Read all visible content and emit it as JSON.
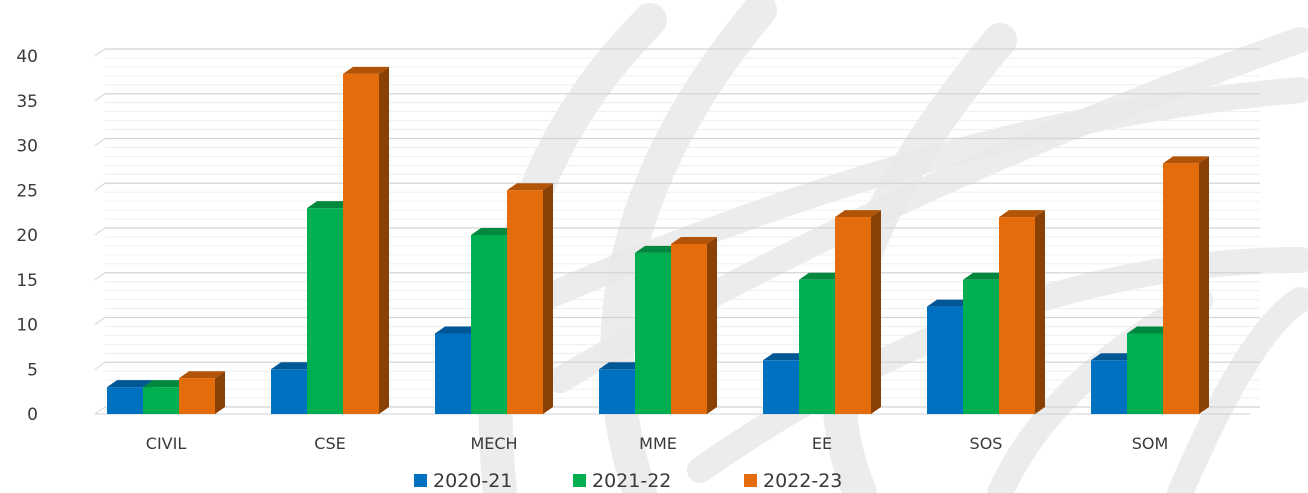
{
  "chart_data": {
    "type": "bar",
    "categories": [
      "CIVIL",
      "CSE",
      "MECH",
      "MME",
      "EE",
      "SOS",
      "SOM"
    ],
    "series": [
      {
        "name": "2020-21",
        "color": "#0070C0",
        "values": [
          3,
          5,
          9,
          5,
          6,
          12,
          6
        ]
      },
      {
        "name": "2021-22",
        "color": "#00B050",
        "values": [
          3,
          23,
          20,
          18,
          15,
          15,
          9
        ]
      },
      {
        "name": "2022-23",
        "color": "#E46C0A",
        "values": [
          4,
          38,
          25,
          19,
          22,
          22,
          28
        ]
      }
    ],
    "ylim": [
      0,
      40
    ],
    "yticks": [
      "0",
      "5",
      "10",
      "15",
      "20",
      "25",
      "30",
      "35",
      "40"
    ],
    "grid": true,
    "legend_position": "bottom",
    "style": "3d-clustered-column"
  }
}
